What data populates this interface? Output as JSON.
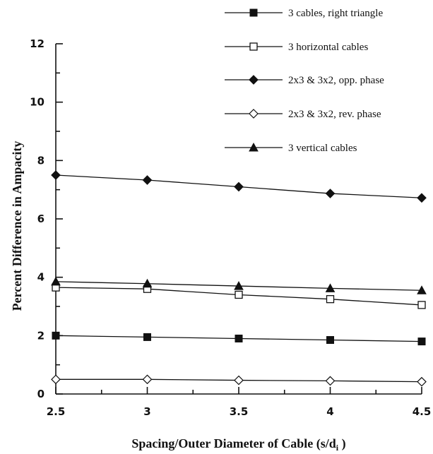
{
  "chart_data": {
    "type": "line",
    "xlabel": "Spacing/Outer Diameter of Cable (s/d",
    "xlabel_subscript": "i",
    "xlabel_suffix": " )",
    "ylabel": "Percent Difference in Ampacity",
    "xlim": [
      2.5,
      4.5
    ],
    "ylim": [
      0,
      12
    ],
    "x": [
      2.5,
      3,
      3.5,
      4,
      4.5
    ],
    "x_tick_labels": [
      "2.5",
      "3",
      "3.5",
      "4",
      "4.5"
    ],
    "y_ticks": [
      0,
      2,
      4,
      6,
      8,
      10,
      12
    ],
    "y_tick_labels": [
      "0",
      "2",
      "4",
      "6",
      "8",
      "10",
      "12"
    ],
    "grid": false,
    "legend_position": "top-right",
    "series": [
      {
        "name": "3 cables, right triangle",
        "marker": "square-filled",
        "values": [
          2.0,
          1.95,
          1.9,
          1.85,
          1.8
        ]
      },
      {
        "name": "3 horizontal cables",
        "marker": "square-open",
        "values": [
          3.65,
          3.6,
          3.4,
          3.25,
          3.05
        ]
      },
      {
        "name": "2x3 & 3x2, opp. phase",
        "marker": "diamond-filled",
        "values": [
          7.5,
          7.33,
          7.1,
          6.87,
          6.72
        ]
      },
      {
        "name": "2x3 & 3x2, rev. phase",
        "marker": "diamond-open",
        "values": [
          0.5,
          0.5,
          0.47,
          0.45,
          0.42
        ]
      },
      {
        "name": "3 vertical cables",
        "marker": "triangle-filled",
        "values": [
          3.85,
          3.78,
          3.7,
          3.62,
          3.55
        ]
      }
    ]
  }
}
